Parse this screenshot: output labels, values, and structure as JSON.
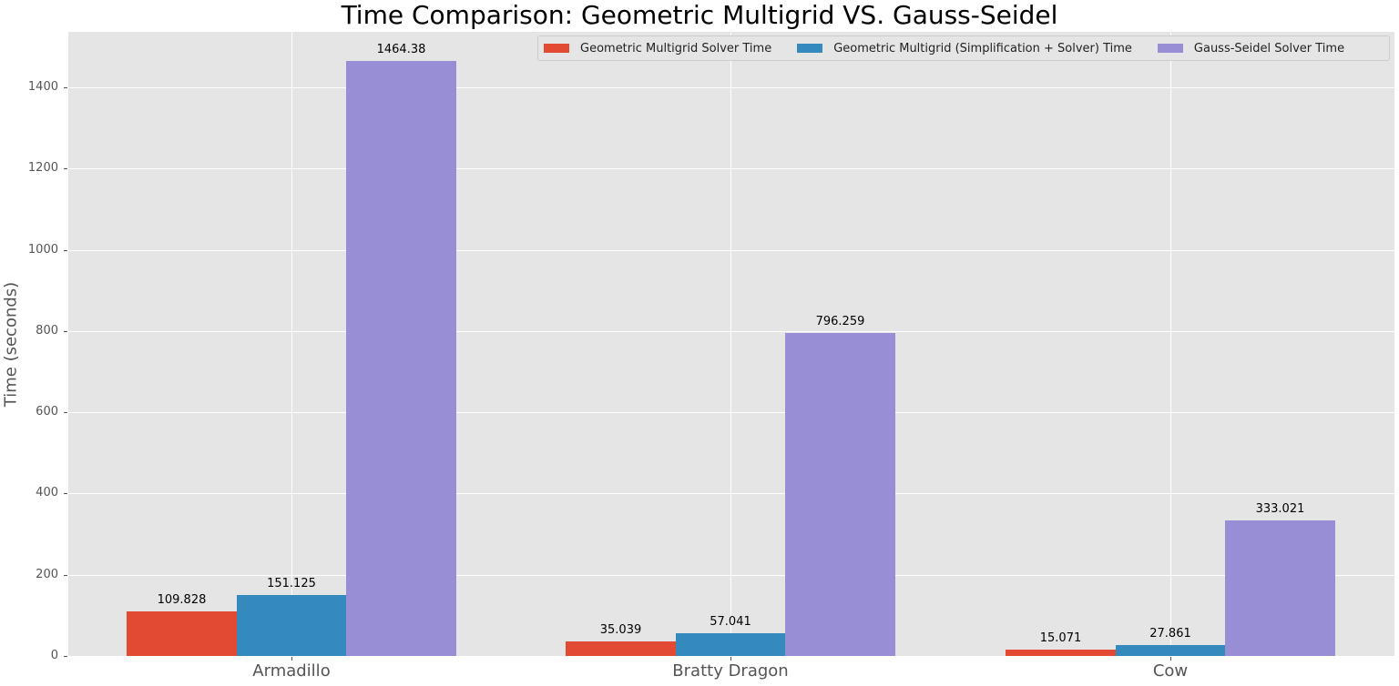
{
  "chart_data": {
    "type": "bar",
    "title": "Time Comparison: Geometric Multigrid VS. Gauss-Seidel",
    "xlabel": "",
    "ylabel": "Time (seconds)",
    "categories": [
      "Armadillo",
      "Bratty Dragon",
      "Cow"
    ],
    "series": [
      {
        "name": "Geometric Multigrid Solver Time",
        "color": "#e24a33",
        "values": [
          109.828,
          35.039,
          15.071
        ]
      },
      {
        "name": "Geometric Multigrid (Simplification + Solver) Time",
        "color": "#348abd",
        "values": [
          151.125,
          57.041,
          27.861
        ]
      },
      {
        "name": "Gauss-Seidel Solver Time",
        "color": "#988ed5",
        "values": [
          1464.38,
          796.259,
          333.021
        ]
      }
    ],
    "value_labels": [
      [
        "109.828",
        "35.039",
        "15.071"
      ],
      [
        "151.125",
        "57.041",
        "27.861"
      ],
      [
        "1464.38",
        "796.259",
        "333.021"
      ]
    ],
    "yticks": [
      "0",
      "200",
      "400",
      "600",
      "800",
      "1000",
      "1200",
      "1400"
    ],
    "ylim": [
      0,
      1537
    ],
    "grid": true,
    "legend_position": "upper right",
    "style": "ggplot"
  }
}
